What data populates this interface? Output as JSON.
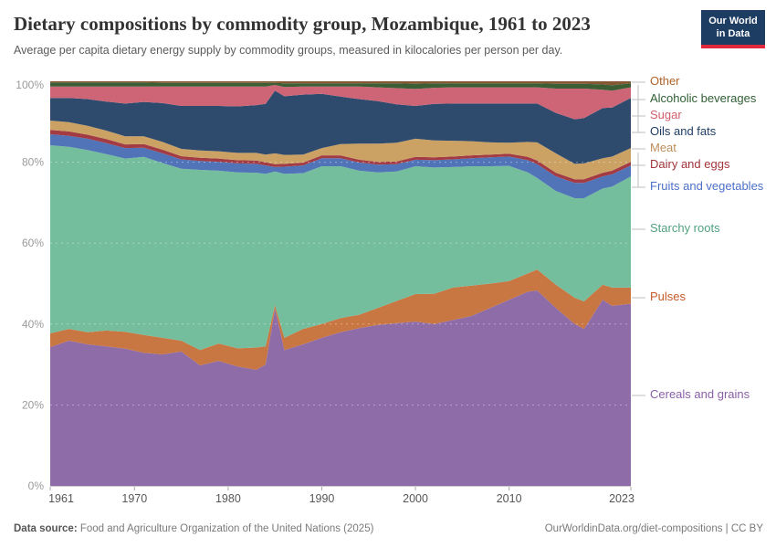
{
  "header": {
    "title": "Dietary compositions by commodity group, Mozambique, 1961 to 2023",
    "subtitle": "Average per capita dietary energy supply by commodity groups, measured in kilocalories per person per day.",
    "logo": {
      "line1": "Our World",
      "line2": "in Data"
    }
  },
  "footer": {
    "source_label": "Data source:",
    "source_text": " Food and Agriculture Organization of the United Nations (2025)",
    "attribution": "OurWorldinData.org/diet-compositions | CC BY"
  },
  "legend": {
    "items": [
      {
        "label": "Other",
        "label_color": "#B16228"
      },
      {
        "label": "Alcoholic beverages",
        "label_color": "#2F5E33"
      },
      {
        "label": "Sugar",
        "label_color": "#CF5F6C"
      },
      {
        "label": "Oils and fats",
        "label_color": "#1D3D63"
      },
      {
        "label": "Meat",
        "label_color": "#BD8D5B"
      },
      {
        "label": "Dairy and eggs",
        "label_color": "#A2343A"
      },
      {
        "label": "Fruits and vegetables",
        "label_color": "#4C6FC8"
      },
      {
        "label": "Starchy roots",
        "label_color": "#51A180"
      },
      {
        "label": "Pulses",
        "label_color": "#C55A28"
      },
      {
        "label": "Cereals and grains",
        "label_color": "#8A5FA8"
      }
    ]
  },
  "chart_data": {
    "type": "area",
    "stacked": true,
    "percent": true,
    "title": "Dietary compositions by commodity group, Mozambique, 1961 to 2023",
    "xlabel": "",
    "ylabel": "",
    "ylim": [
      0,
      100
    ],
    "grid": true,
    "legend_position": "right",
    "x": [
      1961,
      1963,
      1965,
      1967,
      1969,
      1971,
      1973,
      1975,
      1977,
      1979,
      1981,
      1983,
      1984,
      1985,
      1986,
      1988,
      1990,
      1992,
      1994,
      1996,
      1998,
      2000,
      2002,
      2004,
      2006,
      2008,
      2010,
      2012,
      2013,
      2015,
      2017,
      2018,
      2020,
      2021,
      2023
    ],
    "x_ticks": [
      1961,
      1970,
      1980,
      1990,
      2000,
      2010,
      2023
    ],
    "y_tick_values": [
      0,
      20,
      40,
      60,
      80,
      100
    ],
    "y_ticks": [
      "0%",
      "20%",
      "40%",
      "60%",
      "80%",
      "100%"
    ],
    "series": [
      {
        "name": "Cereals and grains",
        "color": "#8E6CA8",
        "values": [
          34.3,
          35.9,
          35.0,
          34.5,
          33.9,
          32.9,
          32.5,
          33.2,
          29.8,
          30.9,
          29.5,
          28.7,
          30.0,
          43.8,
          33.6,
          35.0,
          36.6,
          38.0,
          39.0,
          39.8,
          40.2,
          40.6,
          40.0,
          41.0,
          42.0,
          44.0,
          46.0,
          48.0,
          48.3,
          44.0,
          40.0,
          38.8,
          46.0,
          44.5,
          45.0
        ]
      },
      {
        "name": "Pulses",
        "color": "#C97742",
        "values": [
          3.4,
          2.9,
          3.0,
          3.9,
          4.2,
          4.4,
          4.1,
          2.7,
          3.8,
          4.3,
          4.5,
          5.5,
          4.5,
          0.9,
          3.0,
          3.8,
          3.4,
          3.5,
          3.3,
          4.2,
          5.5,
          6.8,
          7.5,
          8.0,
          7.5,
          6.0,
          4.6,
          4.5,
          5.2,
          5.7,
          6.5,
          6.8,
          3.7,
          4.5,
          4.0
        ]
      },
      {
        "name": "Starchy roots",
        "color": "#74BE9D",
        "values": [
          46.5,
          45.0,
          45.0,
          43.6,
          42.8,
          44.0,
          43.2,
          42.5,
          44.5,
          42.7,
          43.5,
          43.2,
          42.6,
          33.0,
          40.5,
          38.5,
          39.0,
          37.5,
          35.6,
          33.5,
          32.0,
          31.6,
          31.2,
          29.8,
          29.5,
          29.0,
          28.5,
          25.0,
          22.6,
          23.2,
          24.6,
          25.5,
          23.8,
          25.0,
          27.5
        ]
      },
      {
        "name": "Fruits and vegetables",
        "color": "#5173B8",
        "values": [
          2.7,
          2.7,
          2.8,
          2.7,
          2.6,
          2.3,
          2.4,
          2.3,
          2.2,
          2.2,
          2.2,
          2.2,
          2.1,
          1.1,
          1.8,
          1.9,
          2.0,
          2.0,
          2.0,
          1.9,
          1.8,
          1.6,
          1.8,
          1.9,
          2.0,
          2.2,
          2.3,
          3.0,
          3.4,
          3.6,
          3.8,
          3.8,
          3.0,
          3.0,
          2.7
        ]
      },
      {
        "name": "Dairy and eggs",
        "color": "#A33B44",
        "values": [
          1.1,
          1.1,
          1.0,
          1.0,
          0.9,
          0.9,
          0.9,
          0.8,
          0.8,
          0.8,
          0.8,
          0.8,
          0.8,
          0.7,
          0.7,
          0.7,
          0.7,
          0.7,
          0.7,
          0.7,
          0.7,
          0.7,
          0.7,
          0.7,
          0.7,
          0.7,
          0.7,
          0.8,
          0.9,
          0.9,
          0.9,
          0.9,
          0.9,
          0.9,
          0.9
        ]
      },
      {
        "name": "Meat",
        "color": "#CBA264",
        "values": [
          2.3,
          2.3,
          2.2,
          2.1,
          2.0,
          1.9,
          1.9,
          1.8,
          1.8,
          1.8,
          1.8,
          1.9,
          1.9,
          2.7,
          2.2,
          2.0,
          1.8,
          2.8,
          4.0,
          4.5,
          4.6,
          4.5,
          4.2,
          3.9,
          3.5,
          3.0,
          2.7,
          3.7,
          4.5,
          4.8,
          3.8,
          3.9,
          3.6,
          3.5,
          3.4
        ]
      },
      {
        "name": "Oils and fats",
        "color": "#2E4B6E",
        "values": [
          5.6,
          6.0,
          6.6,
          7.2,
          8.1,
          8.5,
          9.6,
          10.6,
          11.0,
          11.2,
          11.5,
          11.8,
          12.5,
          15.5,
          14.5,
          14.8,
          13.4,
          11.7,
          11.0,
          10.5,
          9.5,
          8.1,
          9.0,
          9.2,
          9.3,
          9.6,
          9.7,
          9.5,
          9.6,
          10.0,
          11.0,
          11.2,
          12.4,
          12.1,
          12.4
        ]
      },
      {
        "name": "Sugar",
        "color": "#CE6577",
        "values": [
          2.8,
          2.8,
          3.1,
          3.7,
          4.2,
          3.8,
          4.1,
          4.8,
          4.8,
          4.8,
          4.9,
          4.6,
          4.3,
          1.4,
          2.3,
          2.0,
          1.8,
          2.5,
          3.1,
          3.4,
          4.0,
          4.2,
          4.0,
          4.0,
          4.0,
          4.0,
          4.0,
          4.0,
          4.0,
          6.0,
          7.6,
          7.3,
          4.5,
          4.2,
          2.6
        ]
      },
      {
        "name": "Alcoholic beverages",
        "color": "#3B5E34",
        "values": [
          1.0,
          1.0,
          1.0,
          1.0,
          1.0,
          1.0,
          0.9,
          0.9,
          0.9,
          0.9,
          0.9,
          0.9,
          0.9,
          0.5,
          0.9,
          0.8,
          0.8,
          0.8,
          0.8,
          1.0,
          1.2,
          1.3,
          1.1,
          1.0,
          1.0,
          1.0,
          1.0,
          1.0,
          1.0,
          1.2,
          1.2,
          1.2,
          1.3,
          1.3,
          1.0
        ]
      },
      {
        "name": "Other",
        "color": "#835832",
        "values": [
          0.3,
          0.3,
          0.3,
          0.3,
          0.3,
          0.3,
          0.4,
          0.4,
          0.4,
          0.4,
          0.4,
          0.4,
          0.4,
          0.4,
          0.5,
          0.5,
          0.5,
          0.5,
          0.5,
          0.5,
          0.5,
          0.6,
          0.5,
          0.5,
          0.5,
          0.5,
          0.5,
          0.5,
          0.5,
          0.6,
          0.6,
          0.6,
          0.8,
          1.0,
          0.5
        ]
      }
    ]
  }
}
